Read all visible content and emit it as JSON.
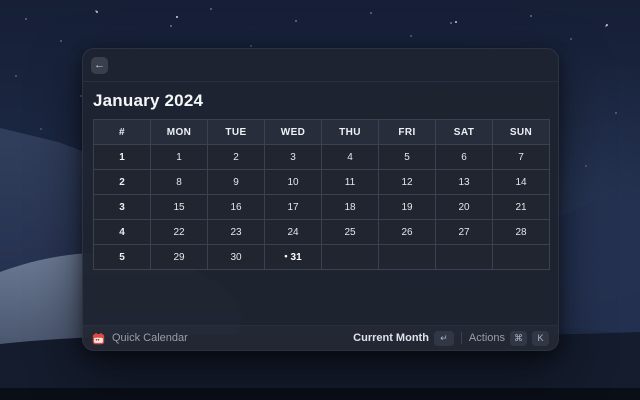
{
  "window": {
    "nav": {
      "back_icon": "←"
    },
    "title": "January 2024"
  },
  "calendar": {
    "columns": [
      "#",
      "MON",
      "TUE",
      "WED",
      "THU",
      "FRI",
      "SAT",
      "SUN"
    ],
    "rows": [
      {
        "week": "1",
        "days": [
          "1",
          "2",
          "3",
          "4",
          "5",
          "6",
          "7"
        ]
      },
      {
        "week": "2",
        "days": [
          "8",
          "9",
          "10",
          "11",
          "12",
          "13",
          "14"
        ]
      },
      {
        "week": "3",
        "days": [
          "15",
          "16",
          "17",
          "18",
          "19",
          "20",
          "21"
        ]
      },
      {
        "week": "4",
        "days": [
          "22",
          "23",
          "24",
          "25",
          "26",
          "27",
          "28"
        ]
      },
      {
        "week": "5",
        "days": [
          "29",
          "30",
          "31",
          "",
          "",
          "",
          ""
        ]
      }
    ],
    "today_day": "31",
    "today_marker": "•"
  },
  "footer": {
    "app_name": "Quick Calendar",
    "primary_action": {
      "label": "Current Month",
      "key": "↵"
    },
    "actions": {
      "label": "Actions",
      "keys": [
        "⌘",
        "K"
      ]
    }
  },
  "colors": {
    "accent_icon_red": "#de4a41",
    "window_bg": "#1e2330",
    "table_border": "#3b4150",
    "header_row_bg": "#272d3b"
  }
}
